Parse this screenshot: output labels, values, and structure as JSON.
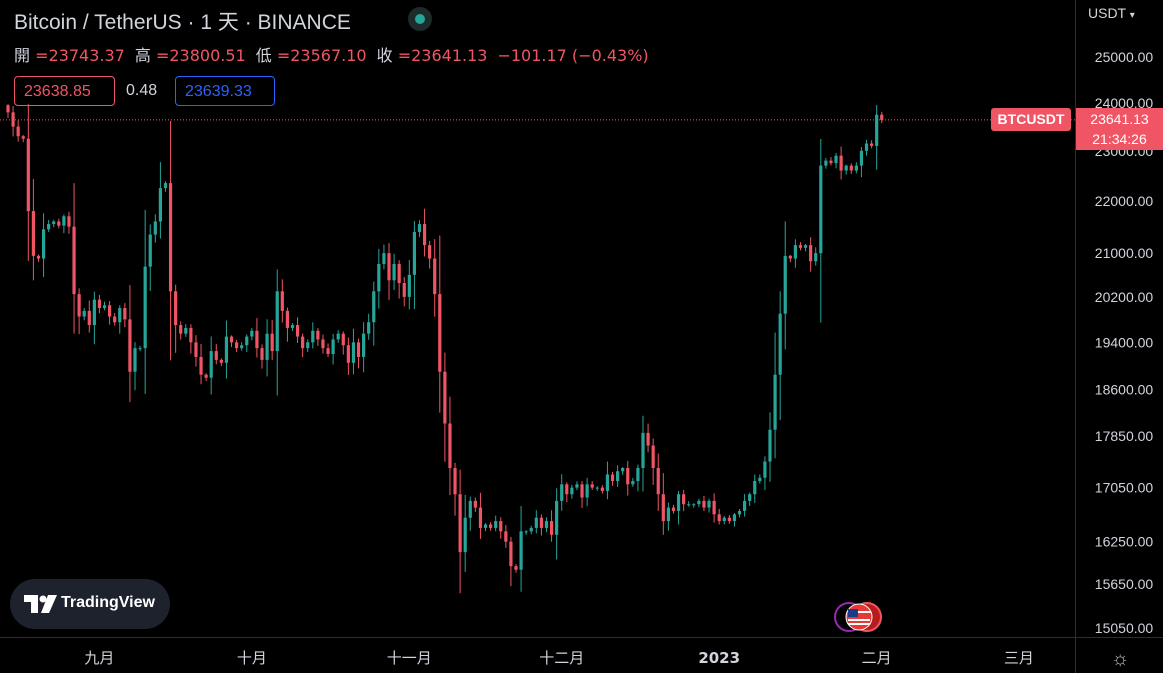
{
  "header": {
    "title": "Bitcoin / TetherUS · 1 天 · BINANCE",
    "open_label": "開",
    "open": "=23743.37",
    "high_label": "高",
    "high": "=23800.51",
    "low_label": "低",
    "low": "=23567.10",
    "close_label": "收",
    "close": "=23641.13",
    "change": "−101.17 (−0.43%)"
  },
  "trade": {
    "sell": "23638.85",
    "spread": "0.48",
    "buy": "23639.33"
  },
  "price_axis": {
    "currency": "USDT"
  },
  "symbol_tag": "BTCUSDT",
  "last_price": "23641.13",
  "countdown": "21:34:26",
  "brand": "TradingView",
  "icons": {
    "logo": "tradingview-logo-icon",
    "settings": "gear-icon",
    "events": "us-flag-event-icon",
    "status": "market-open-dot-icon"
  },
  "colors": {
    "up": "#26a69a",
    "down": "#f05565",
    "background": "#000000"
  },
  "chart_data": {
    "type": "candlestick",
    "title": "Bitcoin / TetherUS · 1 天 · BINANCE",
    "y_ticks": [
      25000,
      24000,
      23000,
      22000,
      21000,
      20200,
      19400,
      18600,
      17850,
      17050,
      16250,
      15650,
      15050
    ],
    "y_tick_labels": [
      "25000.00",
      "24000.00",
      "23000.00",
      "22000.00",
      "21000.00",
      "20200.00",
      "19400.00",
      "18600.00",
      "17850.00",
      "17050.00",
      "16250.00",
      "15650.00",
      "15050.00"
    ],
    "x_labels": [
      "九月",
      "十月",
      "十一月",
      "十二月",
      "2023",
      "二月",
      "三月"
    ],
    "x_label_days": [
      18,
      48,
      79,
      109,
      140,
      171,
      199
    ],
    "last_price": 23641.13,
    "y_scale": "log",
    "note_price_range": [
      15050,
      25000
    ],
    "closes": [
      23800,
      23500,
      23300,
      23250,
      21800,
      20950,
      20900,
      21450,
      21550,
      21600,
      21520,
      21700,
      21500,
      20250,
      19850,
      19950,
      19700,
      20150,
      20000,
      20050,
      19850,
      19750,
      20000,
      19800,
      18900,
      19300,
      19300,
      20750,
      21350,
      21600,
      22250,
      22350,
      20300,
      19700,
      19550,
      19650,
      19400,
      19150,
      18850,
      18800,
      19250,
      19100,
      19050,
      19500,
      19400,
      19300,
      19350,
      19500,
      19600,
      19300,
      19100,
      19550,
      19250,
      20300,
      19950,
      19650,
      19700,
      19500,
      19300,
      19400,
      19600,
      19450,
      19300,
      19200,
      19450,
      19550,
      19350,
      19050,
      19400,
      19150,
      19550,
      19750,
      20300,
      20800,
      21000,
      20500,
      20800,
      20450,
      20200,
      20600,
      21400,
      21550,
      21150,
      20900,
      20250,
      18900,
      18050,
      17350,
      16950,
      16100,
      16600,
      16850,
      16750,
      16450,
      16500,
      16450,
      16550,
      16400,
      16250,
      15900,
      15850,
      16400,
      16400,
      16450,
      16600,
      16450,
      16550,
      16350,
      16850,
      17100,
      16950,
      17050,
      17100,
      16900,
      17100,
      17050,
      17050,
      17000,
      17250,
      17150,
      17300,
      17350,
      17100,
      17150,
      17350,
      17900,
      17700,
      17350,
      16950,
      16550,
      16750,
      16700,
      16950,
      16800,
      16800,
      16800,
      16850,
      16750,
      16850,
      16650,
      16550,
      16600,
      16550,
      16650,
      16700,
      16850,
      16950,
      17150,
      17200,
      17450,
      17950,
      18850,
      19900,
      20950,
      20900,
      21150,
      21100,
      21150,
      20850,
      21000,
      22700,
      22800,
      22750,
      22900,
      22600,
      22700,
      22600,
      22700,
      23000,
      23150,
      23100,
      23750,
      23641
    ]
  }
}
